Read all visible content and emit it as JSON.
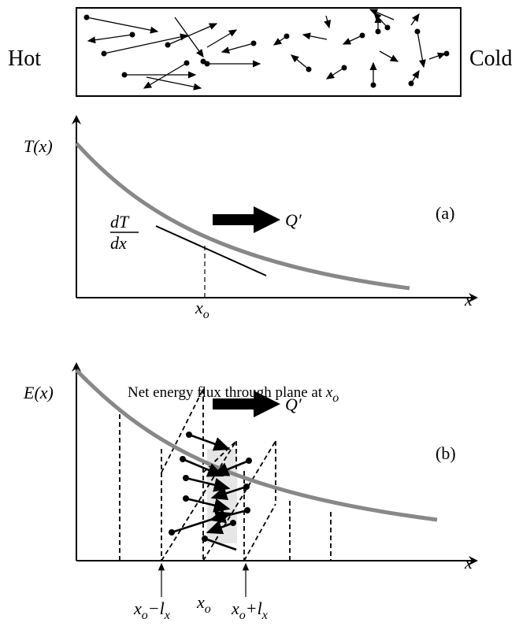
{
  "top": {
    "left_label": "Hot",
    "right_label": "Cold"
  },
  "panel_a": {
    "y_axis_label": "T(x)",
    "x_axis_label": "x",
    "tag": "(a)",
    "slope_numerator": "dT",
    "slope_denominator": "dx",
    "flux_label": "Q′",
    "marker": {
      "base": "x",
      "sub": "o"
    }
  },
  "panel_b": {
    "y_axis_label": "E(x)",
    "title": {
      "text": "Net energy flux through plane at ",
      "base": "x",
      "sub": "o"
    },
    "x_axis_label": "x",
    "tag": "(b)",
    "flux_label": "Q′",
    "markers": [
      {
        "base": "x",
        "sub": "o",
        "op": "−l",
        "sub2": "x"
      },
      {
        "base": "x",
        "sub": "o"
      },
      {
        "base": "x",
        "sub": "o",
        "op": "+l",
        "sub2": "x"
      }
    ]
  }
}
